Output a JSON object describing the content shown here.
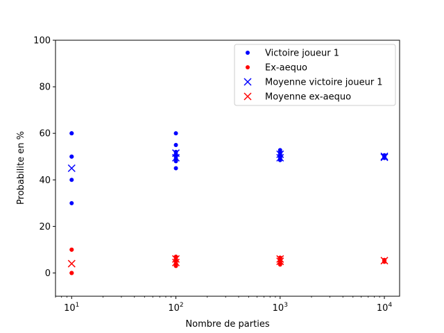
{
  "chart_data": {
    "type": "scatter",
    "xlabel": "Nombre de parties",
    "ylabel": "Probabilite en %",
    "xscale": "log",
    "xlim": [
      7,
      14000
    ],
    "ylim": [
      -10,
      100
    ],
    "xticks": [
      {
        "value": 10,
        "base": "10",
        "exp": "1"
      },
      {
        "value": 100,
        "base": "10",
        "exp": "2"
      },
      {
        "value": 1000,
        "base": "10",
        "exp": "3"
      },
      {
        "value": 10000,
        "base": "10",
        "exp": "4"
      }
    ],
    "yticks": [
      0,
      20,
      40,
      60,
      80,
      100
    ],
    "legend_position": "top-right",
    "series": [
      {
        "name": "Victoire joueur 1",
        "marker": "dot",
        "color": "#0000ff",
        "points": [
          [
            10,
            60
          ],
          [
            10,
            60
          ],
          [
            10,
            50
          ],
          [
            10,
            50
          ],
          [
            10,
            40
          ],
          [
            10,
            30
          ],
          [
            100,
            60
          ],
          [
            100,
            55
          ],
          [
            100,
            52
          ],
          [
            100,
            51
          ],
          [
            100,
            50
          ],
          [
            100,
            49
          ],
          [
            100,
            48
          ],
          [
            100,
            45
          ],
          [
            1000,
            52.8
          ],
          [
            1000,
            51.9
          ],
          [
            1000,
            51
          ],
          [
            1000,
            50.3
          ],
          [
            1000,
            49.7
          ],
          [
            1000,
            49
          ],
          [
            1000,
            48.5
          ],
          [
            10000,
            50.6
          ],
          [
            10000,
            50.2
          ],
          [
            10000,
            49.8
          ],
          [
            10000,
            49.4
          ]
        ]
      },
      {
        "name": "Ex-aequo",
        "marker": "dot",
        "color": "#ff0000",
        "points": [
          [
            10,
            10
          ],
          [
            10,
            10
          ],
          [
            10,
            0
          ],
          [
            10,
            0
          ],
          [
            10,
            0
          ],
          [
            100,
            7
          ],
          [
            100,
            6
          ],
          [
            100,
            5
          ],
          [
            100,
            4
          ],
          [
            100,
            3
          ],
          [
            1000,
            6.6
          ],
          [
            1000,
            6
          ],
          [
            1000,
            5.5
          ],
          [
            1000,
            4.8
          ],
          [
            1000,
            4.2
          ],
          [
            1000,
            3.6
          ],
          [
            10000,
            5.6
          ],
          [
            10000,
            5.3
          ],
          [
            10000,
            5.0
          ],
          [
            10000,
            4.8
          ]
        ]
      },
      {
        "name": "Moyenne victoire joueur 1",
        "marker": "x",
        "color": "#0000ff",
        "points": [
          [
            10,
            45
          ],
          [
            100,
            51.5
          ],
          [
            100,
            49.5
          ],
          [
            1000,
            51
          ],
          [
            1000,
            49.5
          ],
          [
            10000,
            50.1
          ],
          [
            10000,
            49.7
          ]
        ]
      },
      {
        "name": "Moyenne ex-aequo",
        "marker": "x",
        "color": "#ff0000",
        "points": [
          [
            10,
            4
          ],
          [
            100,
            6
          ],
          [
            100,
            4.5
          ],
          [
            1000,
            6
          ],
          [
            1000,
            5
          ],
          [
            10000,
            5.3
          ]
        ]
      }
    ]
  }
}
